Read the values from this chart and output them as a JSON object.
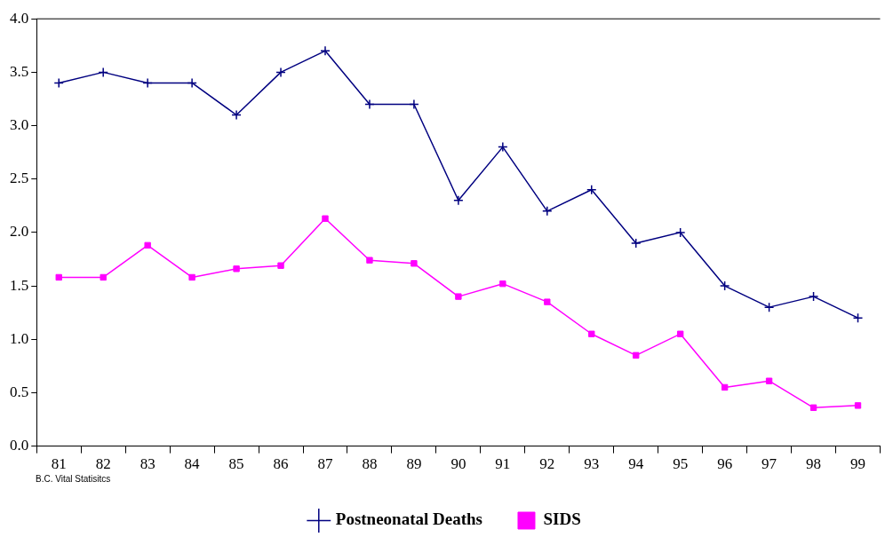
{
  "chart_data": {
    "type": "line",
    "categories": [
      "81",
      "82",
      "83",
      "84",
      "85",
      "86",
      "87",
      "88",
      "89",
      "90",
      "91",
      "92",
      "93",
      "94",
      "95",
      "96",
      "97",
      "98",
      "99"
    ],
    "series": [
      {
        "name": "Postneonatal Deaths",
        "color": "#000080",
        "marker": "cross",
        "values": [
          3.4,
          3.5,
          3.4,
          3.4,
          3.1,
          3.5,
          3.7,
          3.2,
          3.2,
          2.3,
          2.8,
          2.2,
          2.4,
          1.9,
          2.0,
          1.5,
          1.3,
          1.4,
          1.2
        ]
      },
      {
        "name": "SIDS",
        "color": "#ff00ff",
        "marker": "square",
        "values": [
          1.58,
          1.58,
          1.88,
          1.58,
          1.66,
          1.69,
          2.13,
          1.74,
          1.71,
          1.4,
          1.52,
          1.35,
          1.05,
          0.85,
          1.05,
          0.55,
          0.61,
          0.36,
          0.38
        ]
      }
    ],
    "ylim": [
      0,
      4
    ],
    "yticks": [
      {
        "value": 0,
        "label": "0.0"
      },
      0.5,
      {
        "value": 1,
        "label": "1.0"
      },
      1.5,
      {
        "value": 2,
        "label": "2.0"
      },
      2.5,
      {
        "value": 3,
        "label": "3.0"
      },
      3.5,
      {
        "value": 4,
        "label": "4.0"
      }
    ],
    "grid": false,
    "legend": "bottom",
    "line_style": "solid",
    "annotations": [
      "B.C. Vital Statisitcs"
    ]
  }
}
